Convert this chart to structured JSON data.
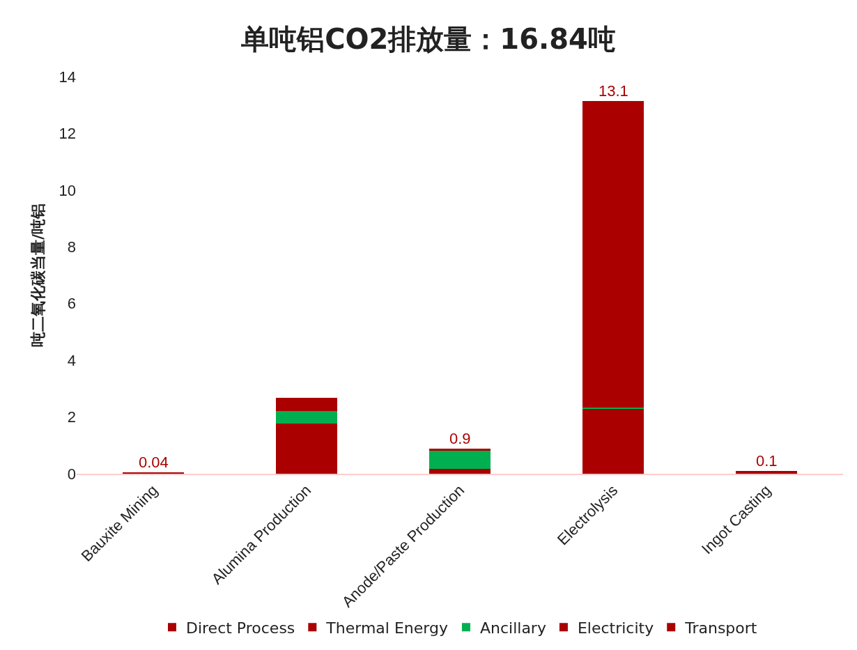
{
  "chart_data": {
    "type": "bar",
    "stacked": true,
    "title": "单吨铝CO2排放量：16.84吨",
    "ylabel": "吨二氧化碳当量/吨铝",
    "categories": [
      "Bauxite Mining",
      "Alumina Production",
      "Anode/Paste Production",
      "Electrolysis",
      "Ingot Casting"
    ],
    "series": [
      {
        "name": "Direct Process",
        "color": "#aa0000",
        "values": [
          null,
          null,
          0.18,
          2.3,
          null
        ]
      },
      {
        "name": "Thermal Energy",
        "color": "#aa0000",
        "values": [
          0.04,
          1.76,
          null,
          null,
          0.1
        ]
      },
      {
        "name": "Ancillary",
        "color": "#00b050",
        "values": [
          null,
          0.45,
          0.64,
          0.03,
          null
        ]
      },
      {
        "name": "Electricity",
        "color": "#aa0000",
        "values": [
          null,
          0.47,
          0.06,
          10.8,
          null
        ]
      },
      {
        "name": "Transport",
        "color": "#aa0000",
        "values": [
          null,
          null,
          null,
          null,
          null
        ]
      }
    ],
    "totals": [
      "0.04",
      null,
      "0.9",
      "13.1",
      "0.1"
    ],
    "ylim": [
      0,
      14
    ],
    "yticks": [
      0,
      2,
      4,
      6,
      8,
      10,
      12,
      14
    ],
    "legend": "bottom"
  }
}
